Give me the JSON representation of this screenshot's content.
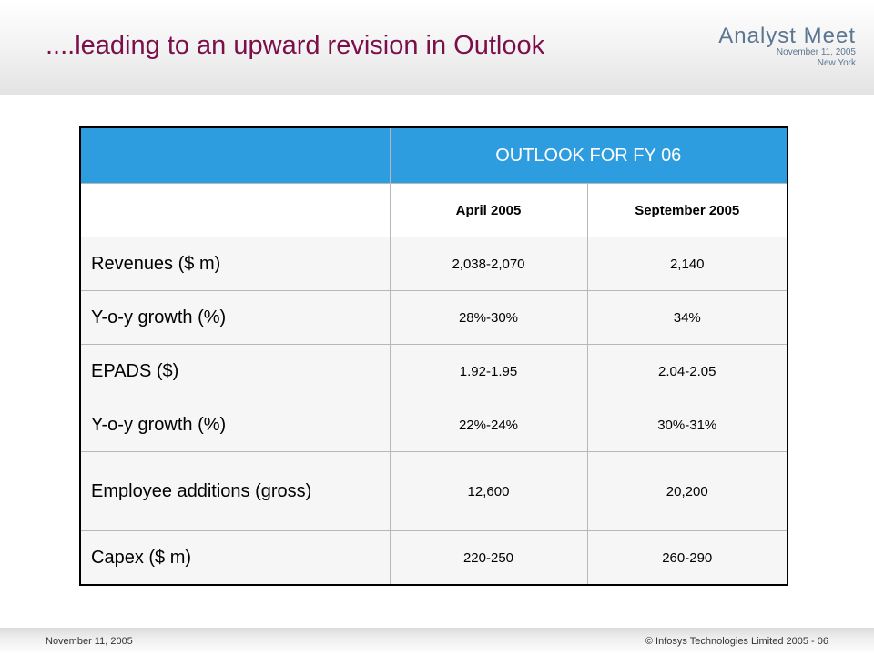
{
  "slide": {
    "title": "....leading to an upward revision in Outlook"
  },
  "brand": {
    "name": "Analyst Meet",
    "date": "November 11, 2005",
    "location": "New York"
  },
  "table": {
    "header": "OUTLOOK FOR FY 06",
    "columns": [
      "April 2005",
      "September 2005"
    ],
    "rows": [
      {
        "label": "Revenues ($ m)",
        "april": "2,038-2,070",
        "september": "2,140"
      },
      {
        "label": "Y-o-y growth (%)",
        "april": "28%-30%",
        "september": "34%"
      },
      {
        "label": "EPADS ($)",
        "april": "1.92-1.95",
        "september": "2.04-2.05"
      },
      {
        "label": "Y-o-y growth (%)",
        "april": "22%-24%",
        "september": "30%-31%"
      },
      {
        "label": "Employee additions (gross)",
        "april": "12,600",
        "september": "20,200"
      },
      {
        "label": "Capex ($ m)",
        "april": "220-250",
        "september": "260-290"
      }
    ]
  },
  "footer": {
    "date": "November 11, 2005",
    "copyright": "© Infosys Technologies Limited 2005 - 06"
  },
  "colors": {
    "title": "#7a0f4a",
    "header_fill": "#2e9de0",
    "brand_text": "#5c7691"
  }
}
